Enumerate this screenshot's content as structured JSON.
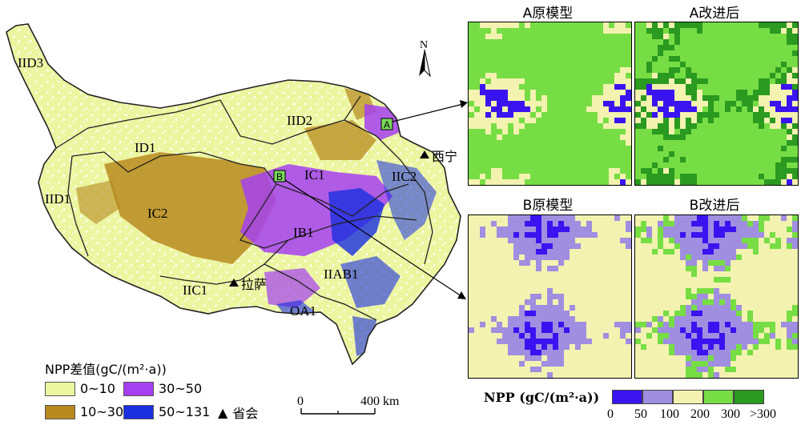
{
  "colors": {
    "d0_10": "#ecf5a0",
    "d10_30": "#b8891e",
    "d30_50": "#a440f0",
    "d50_131": "#1a2fe0",
    "npp_0_50": "#3a14f0",
    "npp_50_100": "#a08ee0",
    "npp_100_200": "#f3f2b0",
    "npp_200_300": "#77dd44",
    "npp_300_plus": "#2a9a20",
    "boundary": "#222222"
  },
  "regions": [
    "IID3",
    "IID2",
    "ID1",
    "IID1",
    "IC2",
    "IC1",
    "IIC2",
    "IB1",
    "IIAB1",
    "IIC1",
    "OA1"
  ],
  "cities": {
    "xining": "西宁",
    "lhasa": "拉萨"
  },
  "markers": {
    "a": "A",
    "b": "B"
  },
  "north_label": "N",
  "scale_bar": {
    "start": "0",
    "end": "400 km"
  },
  "legend": {
    "title": "NPP差值(gC/(m²·a))",
    "items": [
      {
        "label": "0~10",
        "color": "#ecf5a0"
      },
      {
        "label": "30~50",
        "color": "#a440f0"
      },
      {
        "label": "10~30",
        "color": "#b8891e"
      },
      {
        "label": "50~131",
        "color": "#1a2fe0"
      }
    ],
    "capital_symbol": "▲",
    "capital_label": "省会"
  },
  "panels": {
    "a_original": "A原模型",
    "a_improved": "A改进后",
    "b_original": "B原模型",
    "b_improved": "B改进后"
  },
  "npp_legend": {
    "title": "NPP (gC/(m²·a))",
    "ticks": [
      "0",
      "50",
      "100",
      "200",
      "300",
      ">300"
    ]
  }
}
